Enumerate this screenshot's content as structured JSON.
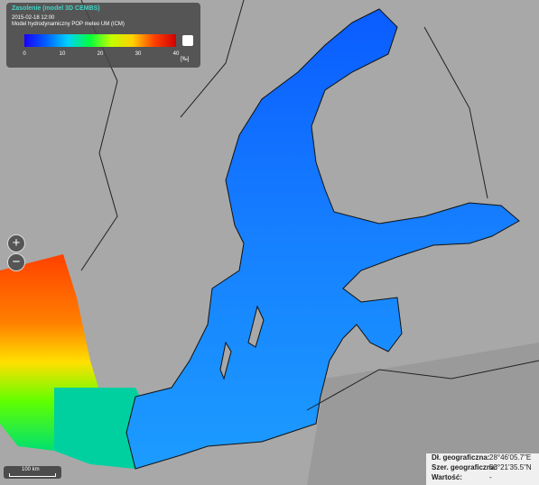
{
  "legend": {
    "title": "Zasolenie (model 3D CEMBS)",
    "date": "2015-02-18 12:00",
    "subtitle": "Model hydrodynamiczny POP meteo UM (ICM)",
    "ticks": [
      "0",
      "10",
      "20",
      "30",
      "40"
    ],
    "unit": "[‰]"
  },
  "controls": {
    "zoom_in": "+",
    "zoom_out": "−"
  },
  "scale": {
    "label": "100 km"
  },
  "info": {
    "rows": [
      [
        "Dł. geograficzna:",
        "28°46'05.7\"E"
      ],
      [
        "Szer. geograficzna:",
        "53°21'35.5\"N"
      ],
      [
        "Wartość:",
        "-"
      ]
    ]
  }
}
